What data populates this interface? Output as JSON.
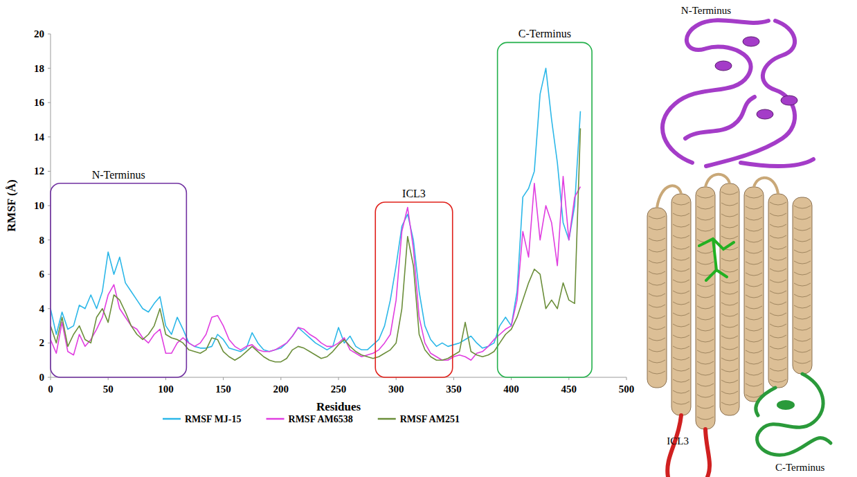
{
  "chart_data": {
    "type": "line",
    "x_label": "Residues",
    "y_label": "RMSF (Å)",
    "xlim": [
      0,
      500
    ],
    "ylim": [
      0,
      20
    ],
    "xticks": [
      0,
      50,
      100,
      150,
      200,
      250,
      300,
      350,
      400,
      450,
      500
    ],
    "yticks": [
      0,
      2,
      4,
      6,
      8,
      10,
      12,
      14,
      16,
      18,
      20
    ],
    "grid": false,
    "legend": "bottom",
    "x": [
      0,
      5,
      10,
      15,
      20,
      25,
      30,
      35,
      40,
      45,
      50,
      55,
      60,
      65,
      70,
      75,
      80,
      85,
      90,
      95,
      100,
      105,
      110,
      115,
      120,
      125,
      130,
      135,
      140,
      145,
      150,
      155,
      160,
      165,
      170,
      175,
      180,
      185,
      190,
      195,
      200,
      205,
      210,
      215,
      220,
      225,
      230,
      235,
      240,
      245,
      250,
      255,
      260,
      265,
      270,
      275,
      280,
      285,
      290,
      295,
      300,
      305,
      310,
      315,
      320,
      325,
      330,
      335,
      340,
      345,
      350,
      355,
      360,
      365,
      370,
      375,
      380,
      385,
      390,
      395,
      400,
      405,
      410,
      415,
      420,
      425,
      430,
      435,
      440,
      445,
      450,
      455,
      460
    ],
    "series": [
      {
        "name": "RMSF MJ-15",
        "color": "#2bb7e8",
        "values": [
          4.0,
          2.5,
          3.8,
          2.8,
          3.0,
          4.2,
          4.0,
          4.8,
          4.0,
          5.0,
          7.3,
          6.0,
          7.0,
          5.5,
          5.0,
          4.5,
          4.0,
          3.8,
          4.3,
          4.7,
          3.0,
          2.5,
          3.5,
          2.8,
          2.0,
          1.8,
          1.7,
          1.7,
          1.8,
          2.5,
          2.2,
          1.7,
          1.6,
          1.5,
          1.7,
          2.6,
          2.0,
          1.6,
          1.5,
          1.6,
          1.7,
          2.0,
          2.4,
          2.9,
          2.6,
          2.3,
          2.0,
          1.8,
          1.6,
          1.8,
          2.9,
          2.0,
          2.4,
          1.8,
          1.6,
          1.6,
          1.9,
          2.2,
          3.0,
          4.5,
          6.5,
          8.8,
          9.5,
          8.0,
          5.0,
          3.0,
          2.2,
          1.8,
          2.0,
          1.8,
          1.9,
          2.0,
          2.2,
          2.4,
          2.0,
          1.7,
          1.8,
          2.0,
          3.0,
          3.5,
          3.0,
          5.0,
          10.5,
          11.0,
          12.0,
          16.5,
          18.0,
          15.0,
          12.5,
          9.0,
          8.0,
          10.0,
          15.5
        ]
      },
      {
        "name": "RMSF AM6538",
        "color": "#e03ee0",
        "values": [
          2.2,
          1.4,
          3.2,
          1.5,
          1.3,
          2.5,
          1.8,
          2.2,
          2.8,
          3.5,
          4.8,
          5.4,
          4.0,
          3.5,
          3.0,
          2.8,
          2.3,
          2.0,
          2.5,
          2.8,
          1.4,
          1.4,
          2.0,
          2.3,
          2.0,
          1.8,
          2.0,
          2.5,
          3.5,
          3.6,
          3.0,
          2.2,
          1.8,
          1.6,
          1.8,
          1.9,
          1.6,
          1.5,
          1.5,
          1.6,
          1.8,
          2.0,
          2.4,
          2.9,
          2.8,
          2.5,
          2.3,
          2.0,
          1.8,
          1.8,
          2.0,
          2.3,
          1.6,
          1.4,
          1.2,
          1.3,
          1.4,
          1.6,
          2.0,
          2.5,
          4.5,
          8.5,
          9.9,
          7.5,
          3.5,
          2.0,
          1.4,
          1.2,
          1.0,
          1.0,
          1.2,
          1.3,
          1.2,
          1.0,
          1.4,
          1.5,
          1.8,
          2.2,
          2.5,
          2.8,
          3.0,
          4.5,
          8.5,
          7.0,
          11.3,
          8.0,
          10.0,
          9.0,
          6.5,
          11.7,
          8.0,
          10.5,
          11.1
        ]
      },
      {
        "name": "RMSF AM251",
        "color": "#6b8e3a",
        "values": [
          3.0,
          2.0,
          3.5,
          1.8,
          2.5,
          3.0,
          2.2,
          2.0,
          3.5,
          4.0,
          3.2,
          4.8,
          4.5,
          3.8,
          3.0,
          2.5,
          2.2,
          2.5,
          3.0,
          4.0,
          2.5,
          2.3,
          2.2,
          2.0,
          1.6,
          1.5,
          1.4,
          1.6,
          2.3,
          2.2,
          1.5,
          1.2,
          1.0,
          1.2,
          1.5,
          1.8,
          1.5,
          1.2,
          1.0,
          0.9,
          0.9,
          1.1,
          1.6,
          1.8,
          1.7,
          1.5,
          1.3,
          1.1,
          1.2,
          1.5,
          1.9,
          2.2,
          1.8,
          1.5,
          1.3,
          1.2,
          1.1,
          1.2,
          1.4,
          1.6,
          2.0,
          4.0,
          8.2,
          6.5,
          2.5,
          1.6,
          1.2,
          1.0,
          1.0,
          1.1,
          1.3,
          1.5,
          3.2,
          1.5,
          1.3,
          1.2,
          1.3,
          1.5,
          2.0,
          2.5,
          2.8,
          3.5,
          4.5,
          5.5,
          6.3,
          6.0,
          4.0,
          4.5,
          4.0,
          5.5,
          4.5,
          4.3,
          14.5
        ]
      }
    ],
    "regions": [
      {
        "label": "N-Terminus",
        "color": "#7030a0",
        "x_range": [
          0,
          118
        ],
        "y_range": [
          0,
          11.3
        ]
      },
      {
        "label": "ICL3",
        "color": "#e0201a",
        "x_range": [
          282,
          349
        ],
        "y_range": [
          0,
          10.2
        ]
      },
      {
        "label": "C-Terminus",
        "color": "#22b04a",
        "x_range": [
          388,
          470
        ],
        "y_range": [
          0,
          19.5
        ]
      }
    ]
  },
  "structure": {
    "labels": [
      "N-Terminus",
      "ICL3",
      "C-Terminus"
    ]
  }
}
